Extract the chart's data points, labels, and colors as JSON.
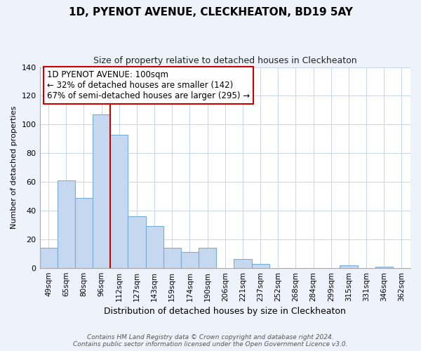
{
  "title": "1D, PYENOT AVENUE, CLECKHEATON, BD19 5AY",
  "subtitle": "Size of property relative to detached houses in Cleckheaton",
  "xlabel": "Distribution of detached houses by size in Cleckheaton",
  "ylabel": "Number of detached properties",
  "bar_labels": [
    "49sqm",
    "65sqm",
    "80sqm",
    "96sqm",
    "112sqm",
    "127sqm",
    "143sqm",
    "159sqm",
    "174sqm",
    "190sqm",
    "206sqm",
    "221sqm",
    "237sqm",
    "252sqm",
    "268sqm",
    "284sqm",
    "299sqm",
    "315sqm",
    "331sqm",
    "346sqm",
    "362sqm"
  ],
  "bar_values": [
    14,
    61,
    49,
    107,
    93,
    36,
    29,
    14,
    11,
    14,
    0,
    6,
    3,
    0,
    0,
    0,
    0,
    2,
    0,
    1,
    0
  ],
  "bar_color": "#c6d8f0",
  "bar_edge_color": "#7aadd4",
  "vline_x_index": 4,
  "vline_color": "#cc0000",
  "ylim": [
    0,
    140
  ],
  "yticks": [
    0,
    20,
    40,
    60,
    80,
    100,
    120,
    140
  ],
  "annotation_line1": "1D PYENOT AVENUE: 100sqm",
  "annotation_line2": "← 32% of detached houses are smaller (142)",
  "annotation_line3": "67% of semi-detached houses are larger (295) →",
  "annotation_box_color": "#ffffff",
  "annotation_box_edge": "#cc0000",
  "footer_line1": "Contains HM Land Registry data © Crown copyright and database right 2024.",
  "footer_line2": "Contains public sector information licensed under the Open Government Licence v3.0.",
  "background_color": "#edf2fb",
  "plot_background_color": "#ffffff",
  "grid_color": "#c8d4e8",
  "title_fontsize": 11,
  "subtitle_fontsize": 9,
  "xlabel_fontsize": 9,
  "ylabel_fontsize": 8,
  "tick_fontsize": 7.5,
  "annot_fontsize": 8.5
}
